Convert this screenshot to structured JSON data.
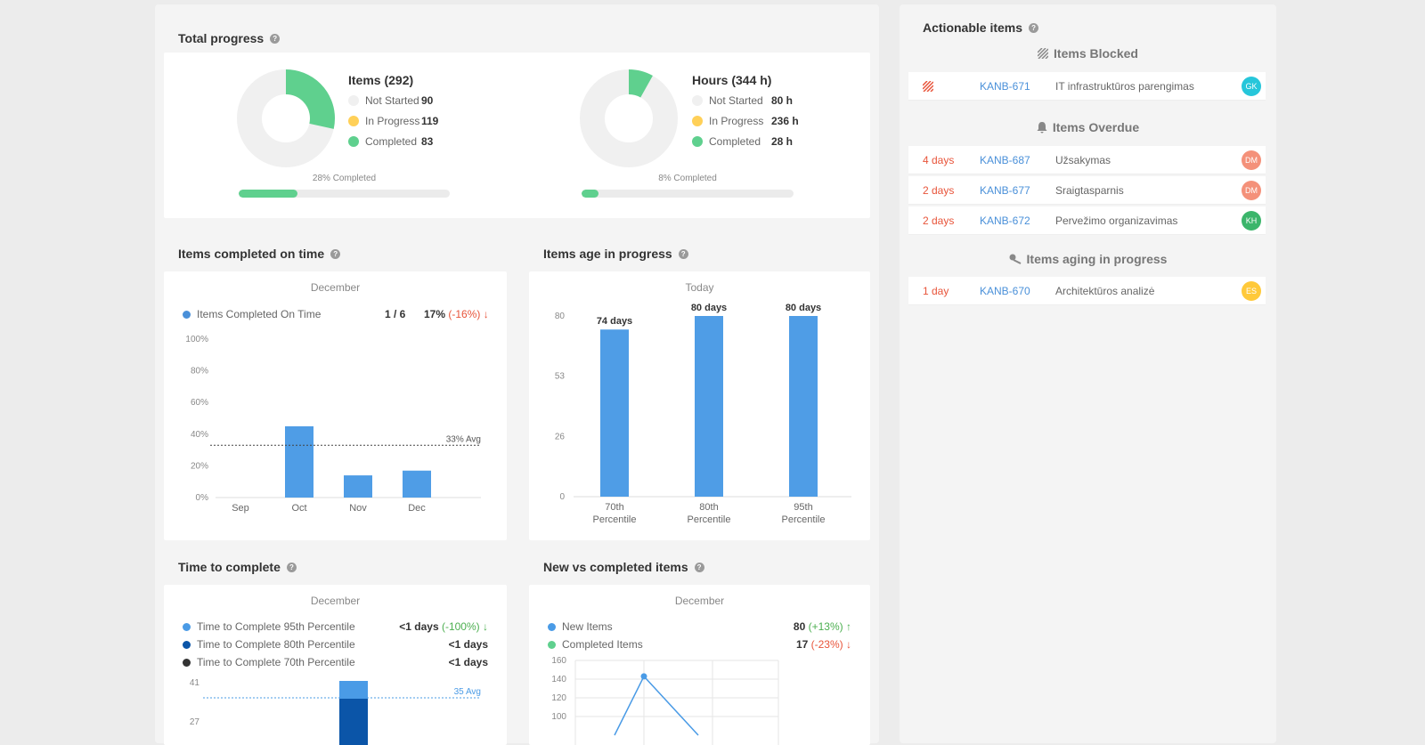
{
  "total_progress": {
    "title": "Total progress",
    "items": {
      "title": "Items (292)",
      "legend": [
        {
          "label": "Not Started",
          "value": "90",
          "color": "#f0f0f0"
        },
        {
          "label": "In Progress",
          "value": "119",
          "color": "#ffd058"
        },
        {
          "label": "Completed",
          "value": "83",
          "color": "#5fd08e"
        }
      ],
      "completed_label": "28% Completed",
      "completed_fraction": 0.28
    },
    "hours": {
      "title": "Hours (344 h)",
      "legend": [
        {
          "label": "Not Started",
          "value": "80 h",
          "color": "#f0f0f0"
        },
        {
          "label": "In Progress",
          "value": "236 h",
          "color": "#ffd058"
        },
        {
          "label": "Completed",
          "value": "28 h",
          "color": "#5fd08e"
        }
      ],
      "completed_label": "8% Completed",
      "completed_fraction": 0.08
    }
  },
  "on_time": {
    "title": "Items completed on time",
    "subtitle": "December",
    "legend_label": "Items Completed On Time",
    "ratio": "1 / 6",
    "pct": "17%",
    "delta": "(-16%)",
    "avg_label": "33% Avg"
  },
  "age": {
    "title": "Items age in progress",
    "subtitle": "Today"
  },
  "ttc": {
    "title": "Time to complete",
    "subtitle": "December",
    "legend": [
      {
        "label": "Time to Complete 95th Percentile",
        "value": "<1 days",
        "delta": "(-100%)",
        "color": "#4a9be6"
      },
      {
        "label": "Time to Complete 80th Percentile",
        "value": "<1 days",
        "delta": "",
        "color": "#0b55a8"
      },
      {
        "label": "Time to Complete 70th Percentile",
        "value": "<1 days",
        "delta": "",
        "color": "#333333"
      }
    ],
    "avg_label": "35 Avg",
    "y_ticks": [
      "41",
      "27"
    ]
  },
  "nvc": {
    "title": "New vs completed items",
    "subtitle": "December",
    "legend": [
      {
        "label": "New Items",
        "value": "80",
        "delta": "(+13%)",
        "color": "#4a9be6"
      },
      {
        "label": "Completed Items",
        "value": "17",
        "delta": "(-23%)",
        "color": "#5fd08e"
      }
    ]
  },
  "actionable": {
    "title": "Actionable items",
    "blocked": {
      "title": "Items Blocked",
      "rows": [
        {
          "id": "KANB-671",
          "name": "IT infrastruktūros parengimas",
          "avatar": "GK",
          "avatar_color": "#26c6da"
        }
      ]
    },
    "overdue": {
      "title": "Items Overdue",
      "rows": [
        {
          "age": "4 days",
          "id": "KANB-687",
          "name": "Užsakymas",
          "avatar": "DM",
          "avatar_color": "#f4917a"
        },
        {
          "age": "2 days",
          "id": "KANB-677",
          "name": "Sraigtasparnis",
          "avatar": "DM",
          "avatar_color": "#f4917a"
        },
        {
          "age": "2 days",
          "id": "KANB-672",
          "name": "Pervežimo organizavimas",
          "avatar": "KH",
          "avatar_color": "#3bb56b"
        }
      ]
    },
    "aging": {
      "title": "Items aging in progress",
      "rows": [
        {
          "age": "1 day",
          "id": "KANB-670",
          "name": "Architektūros analizė",
          "avatar": "ES",
          "avatar_color": "#ffc93a"
        }
      ]
    }
  },
  "chart_data": [
    {
      "type": "bar",
      "title": "Items completed on time",
      "subtitle": "December",
      "categories": [
        "Sep",
        "Oct",
        "Nov",
        "Dec"
      ],
      "series": [
        {
          "name": "Items Completed On Time",
          "values": [
            0,
            45,
            14,
            17
          ]
        }
      ],
      "y_ticks": [
        "100%",
        "80%",
        "60%",
        "40%",
        "20%",
        "0%"
      ],
      "ylim": [
        0,
        100
      ],
      "avg": 33,
      "color": "#4f9de6"
    },
    {
      "type": "bar",
      "title": "Items age in progress",
      "subtitle": "Today",
      "categories": [
        "70th Percentile",
        "80th Percentile",
        "95th Percentile"
      ],
      "values": [
        74,
        80,
        80
      ],
      "data_labels": [
        "74 days",
        "80 days",
        "80 days"
      ],
      "y_ticks": [
        "80",
        "53",
        "26",
        "0"
      ],
      "ylim": [
        0,
        80
      ],
      "color": "#4f9de6"
    },
    {
      "type": "line",
      "title": "New vs completed items",
      "subtitle": "December",
      "y_ticks": [
        "160",
        "140",
        "120",
        "100"
      ],
      "ylim": [
        90,
        160
      ],
      "series": [
        {
          "name": "New Items",
          "values": [
            80,
            143,
            80
          ]
        }
      ]
    }
  ]
}
